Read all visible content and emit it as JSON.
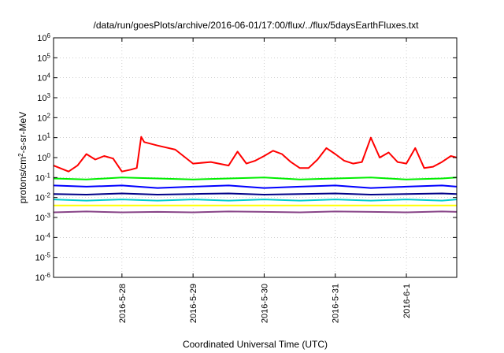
{
  "chart_data": {
    "type": "line",
    "title": "/data/run/goesPlots/archive/2016-06-01/17:00/flux/../flux/5daysEarthFluxes.txt",
    "xlabel": "Coordinated Universal Time (UTC)",
    "ylabel": {
      "prefix": "protons/cm",
      "sup": "2",
      "suffix": "-s-sr-MeV"
    },
    "y_scale": "log",
    "ylim": [
      1e-06,
      1000000.0
    ],
    "y_ticks": [
      {
        "value": 1000000.0,
        "base": "10",
        "exp": "6"
      },
      {
        "value": 100000.0,
        "base": "10",
        "exp": "5"
      },
      {
        "value": 10000.0,
        "base": "10",
        "exp": "4"
      },
      {
        "value": 1000.0,
        "base": "10",
        "exp": "3"
      },
      {
        "value": 100.0,
        "base": "10",
        "exp": "2"
      },
      {
        "value": 10.0,
        "base": "10",
        "exp": "1"
      },
      {
        "value": 1.0,
        "base": "10",
        "exp": "0"
      },
      {
        "value": 0.1,
        "base": "10",
        "exp": "-1"
      },
      {
        "value": 0.01,
        "base": "10",
        "exp": "-2"
      },
      {
        "value": 0.001,
        "base": "10",
        "exp": "-3"
      },
      {
        "value": 0.0001,
        "base": "10",
        "exp": "-4"
      },
      {
        "value": 1e-05,
        "base": "10",
        "exp": "-5"
      },
      {
        "value": 1e-06,
        "base": "10",
        "exp": "-6"
      }
    ],
    "xlim": [
      "2016-05-27T00:55",
      "2016-06-01T17:00"
    ],
    "x_ticks": [
      "2016-5-28",
      "2016-5-29",
      "2016-5-30",
      "2016-5-31",
      "2016-6-1"
    ],
    "grid": true,
    "legend": "none",
    "series": [
      {
        "color": "#ff0000",
        "x": [
          "2016-05-27T00:55",
          "2016-05-27T03:00",
          "2016-05-27T06:00",
          "2016-05-27T09:00",
          "2016-05-27T12:00",
          "2016-05-27T15:00",
          "2016-05-27T18:00",
          "2016-05-27T21:00",
          "2016-05-28T00:00",
          "2016-05-28T03:00",
          "2016-05-28T05:00",
          "2016-05-28T06:30",
          "2016-05-28T07:30",
          "2016-05-28T12:00",
          "2016-05-28T18:00",
          "2016-05-29T00:00",
          "2016-05-29T06:00",
          "2016-05-29T12:00",
          "2016-05-29T15:00",
          "2016-05-29T18:00",
          "2016-05-29T21:00",
          "2016-05-30T00:00",
          "2016-05-30T03:00",
          "2016-05-30T06:00",
          "2016-05-30T09:00",
          "2016-05-30T12:00",
          "2016-05-30T15:00",
          "2016-05-30T18:00",
          "2016-05-30T21:00",
          "2016-05-31T00:00",
          "2016-05-31T03:00",
          "2016-05-31T06:00",
          "2016-05-31T09:00",
          "2016-05-31T12:00",
          "2016-05-31T15:00",
          "2016-05-31T18:00",
          "2016-05-31T21:00",
          "2016-06-01T00:00",
          "2016-06-01T03:00",
          "2016-06-01T06:00",
          "2016-06-01T09:00",
          "2016-06-01T12:00",
          "2016-06-01T15:00",
          "2016-06-01T17:00"
        ],
        "y": [
          0.4,
          0.3,
          0.2,
          0.4,
          1.5,
          0.8,
          1.2,
          0.9,
          0.2,
          0.25,
          0.3,
          11,
          6,
          4,
          2.5,
          0.5,
          0.6,
          0.4,
          2,
          0.5,
          0.7,
          1.2,
          2.2,
          1.5,
          0.6,
          0.3,
          0.3,
          0.8,
          3,
          1.5,
          0.7,
          0.5,
          0.6,
          10,
          1.0,
          1.8,
          0.6,
          0.5,
          3,
          0.3,
          0.35,
          0.6,
          1.2,
          1.0
        ]
      },
      {
        "color": "#00ee00",
        "x": [
          "2016-05-27T00:55",
          "2016-05-27T12:00",
          "2016-05-28T00:00",
          "2016-05-28T12:00",
          "2016-05-29T00:00",
          "2016-05-29T12:00",
          "2016-05-30T00:00",
          "2016-05-30T12:00",
          "2016-05-31T00:00",
          "2016-05-31T12:00",
          "2016-06-01T00:00",
          "2016-06-01T12:00",
          "2016-06-01T17:00"
        ],
        "y": [
          0.09,
          0.08,
          0.1,
          0.09,
          0.08,
          0.09,
          0.1,
          0.08,
          0.09,
          0.1,
          0.08,
          0.09,
          0.1
        ]
      },
      {
        "color": "#0000ff",
        "x": [
          "2016-05-27T00:55",
          "2016-05-27T12:00",
          "2016-05-28T00:00",
          "2016-05-28T12:00",
          "2016-05-29T00:00",
          "2016-05-29T12:00",
          "2016-05-30T00:00",
          "2016-05-30T12:00",
          "2016-05-31T00:00",
          "2016-05-31T12:00",
          "2016-06-01T00:00",
          "2016-06-01T12:00",
          "2016-06-01T17:00"
        ],
        "y": [
          0.04,
          0.035,
          0.04,
          0.03,
          0.035,
          0.04,
          0.03,
          0.035,
          0.04,
          0.03,
          0.035,
          0.04,
          0.035
        ]
      },
      {
        "color": "#000088",
        "x": [
          "2016-05-27T00:55",
          "2016-05-27T12:00",
          "2016-05-28T00:00",
          "2016-05-28T12:00",
          "2016-05-29T00:00",
          "2016-05-29T12:00",
          "2016-05-30T00:00",
          "2016-05-30T12:00",
          "2016-05-31T00:00",
          "2016-05-31T12:00",
          "2016-06-01T00:00",
          "2016-06-01T12:00",
          "2016-06-01T17:00"
        ],
        "y": [
          0.015,
          0.014,
          0.016,
          0.014,
          0.015,
          0.016,
          0.014,
          0.015,
          0.016,
          0.014,
          0.015,
          0.016,
          0.015
        ]
      },
      {
        "color": "#00cccc",
        "x": [
          "2016-05-27T00:55",
          "2016-05-27T12:00",
          "2016-05-28T00:00",
          "2016-05-28T12:00",
          "2016-05-29T00:00",
          "2016-05-29T12:00",
          "2016-05-30T00:00",
          "2016-05-30T12:00",
          "2016-05-31T00:00",
          "2016-05-31T12:00",
          "2016-06-01T00:00",
          "2016-06-01T12:00",
          "2016-06-01T17:00"
        ],
        "y": [
          0.008,
          0.007,
          0.008,
          0.007,
          0.008,
          0.007,
          0.008,
          0.007,
          0.008,
          0.007,
          0.008,
          0.007,
          0.008
        ]
      },
      {
        "color": "#ffff00",
        "x": [
          "2016-05-27T00:55",
          "2016-06-01T17:00"
        ],
        "y": [
          0.004,
          0.004
        ]
      },
      {
        "color": "#884488",
        "x": [
          "2016-05-27T00:55",
          "2016-05-27T12:00",
          "2016-05-28T00:00",
          "2016-05-28T12:00",
          "2016-05-29T00:00",
          "2016-05-29T12:00",
          "2016-05-30T00:00",
          "2016-05-30T12:00",
          "2016-05-31T00:00",
          "2016-05-31T12:00",
          "2016-06-01T00:00",
          "2016-06-01T12:00",
          "2016-06-01T17:00"
        ],
        "y": [
          0.0018,
          0.002,
          0.0018,
          0.0019,
          0.0018,
          0.002,
          0.0019,
          0.0018,
          0.002,
          0.0019,
          0.0018,
          0.002,
          0.0019
        ]
      }
    ]
  }
}
